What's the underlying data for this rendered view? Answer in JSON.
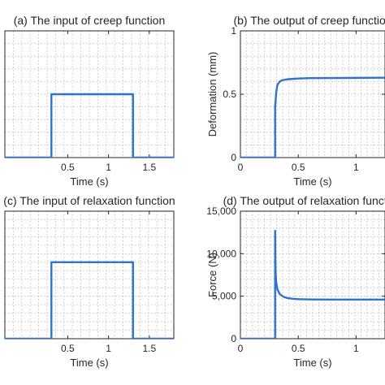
{
  "chart_data": [
    {
      "type": "line",
      "title": "(a) The input of creep function",
      "xlabel": "Time (s)",
      "ylabel": "",
      "xlim": [
        -0.27,
        1.8
      ],
      "ylim": [
        0,
        1
      ],
      "xticks": [
        0.5,
        1,
        1.5
      ],
      "xtick_labels": [
        "0.5",
        "1",
        "1.5"
      ],
      "yticks": [],
      "ytick_labels": [],
      "grid": true,
      "series": [
        {
          "x": [
            -0.27,
            0.3,
            0.3,
            1.3,
            1.3,
            1.8
          ],
          "y": [
            0,
            0,
            0.5,
            0.5,
            0,
            0
          ]
        }
      ]
    },
    {
      "type": "line",
      "title": "(b) The output of creep function",
      "xlabel": "Time (s)",
      "ylabel": "Deformation (mm)",
      "xlim": [
        0,
        1.25
      ],
      "ylim": [
        0,
        1
      ],
      "xticks": [
        0,
        0.5,
        1
      ],
      "xtick_labels": [
        "0",
        "0.5",
        "1"
      ],
      "yticks": [
        0,
        0.5,
        1
      ],
      "ytick_labels": [
        "0",
        "0.5",
        "1"
      ],
      "grid": true,
      "series": [
        {
          "x": [
            0,
            0.3,
            0.3,
            0.31,
            0.32,
            0.34,
            0.36,
            0.4,
            0.45,
            0.5,
            0.6,
            0.8,
            1.0,
            1.2,
            1.3,
            1.3,
            1.33,
            1.36,
            1.4
          ],
          "y": [
            0,
            0,
            0.4,
            0.52,
            0.575,
            0.6,
            0.61,
            0.617,
            0.621,
            0.624,
            0.627,
            0.628,
            0.629,
            0.63,
            0.63,
            0.6,
            0.53,
            0.47,
            0.4
          ]
        }
      ]
    },
    {
      "type": "line",
      "title": "(c) The input of relaxation function",
      "xlabel": "Time (s)",
      "ylabel": "",
      "xlim": [
        -0.27,
        1.8
      ],
      "ylim": [
        0,
        1
      ],
      "xticks": [
        0.5,
        1,
        1.5
      ],
      "xtick_labels": [
        "0.5",
        "1",
        "1.5"
      ],
      "yticks": [],
      "ytick_labels": [],
      "grid": true,
      "series": [
        {
          "x": [
            -0.27,
            0.3,
            0.3,
            1.3,
            1.3,
            1.8
          ],
          "y": [
            0,
            0,
            0.6,
            0.6,
            0,
            0
          ]
        }
      ]
    },
    {
      "type": "line",
      "title": "(d) The output of relaxation function",
      "xlabel": "Time (s)",
      "ylabel": "Force (N)",
      "xlim": [
        0,
        1.25
      ],
      "ylim": [
        0,
        15000
      ],
      "xticks": [
        0,
        0.5,
        1
      ],
      "xtick_labels": [
        "0",
        "0.5",
        "1"
      ],
      "yticks": [
        0,
        5000,
        10000,
        15000
      ],
      "ytick_labels": [
        "0",
        "5,000",
        "10,000",
        "15,000"
      ],
      "grid": true,
      "series": [
        {
          "x": [
            0,
            0.3,
            0.3,
            0.302,
            0.305,
            0.31,
            0.32,
            0.34,
            0.37,
            0.4,
            0.45,
            0.5,
            0.6,
            0.8,
            1.0,
            1.2,
            1.3,
            1.3,
            1.35,
            1.4
          ],
          "y": [
            0,
            0,
            12700,
            9200,
            7600,
            6600,
            5800,
            5250,
            4950,
            4800,
            4700,
            4650,
            4620,
            4600,
            4600,
            4600,
            4600,
            0,
            0,
            0
          ]
        }
      ]
    }
  ]
}
